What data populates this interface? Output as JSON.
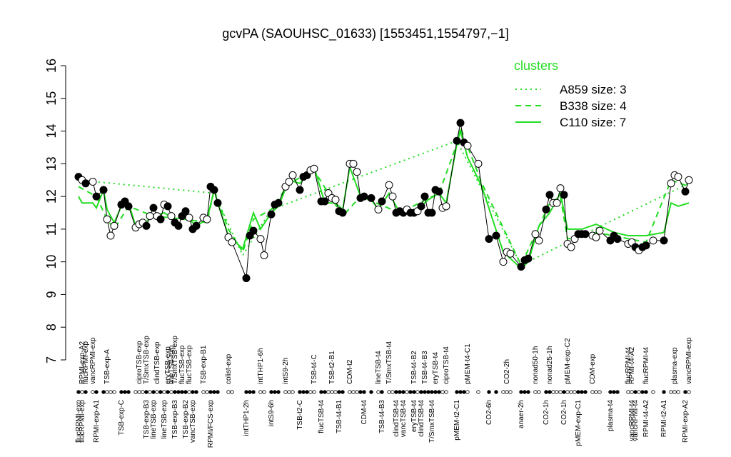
{
  "chart_data": {
    "type": "line",
    "title": "gcvPA (SAOUHSC_01633) [1553451,1554797,−1]",
    "ylim": [
      7,
      16
    ],
    "yticks": [
      7,
      8,
      9,
      10,
      11,
      12,
      13,
      14,
      15,
      16
    ],
    "points": {
      "x": [
        0,
        1,
        2,
        4,
        5,
        7,
        8,
        9,
        10,
        12,
        13,
        14,
        16,
        17,
        18,
        19,
        20,
        21,
        22,
        23,
        24,
        25,
        26,
        27,
        28,
        29,
        30,
        31,
        32,
        33,
        35,
        36,
        37,
        38,
        39,
        42,
        43,
        47,
        48,
        49,
        51,
        52,
        54,
        55,
        56,
        58,
        59,
        60,
        62,
        63,
        64,
        65,
        66,
        68,
        69,
        70,
        71,
        72,
        73,
        74,
        76,
        77,
        78,
        79,
        80,
        82,
        84,
        85,
        87,
        88,
        89,
        90,
        91,
        92,
        93,
        94,
        95,
        96,
        97,
        98,
        99,
        100,
        101,
        102,
        103,
        106,
        107,
        108,
        109,
        112,
        115,
        117,
        119,
        120,
        121,
        124,
        125,
        126,
        128,
        129,
        131,
        132,
        133,
        134,
        135,
        136,
        137,
        138,
        139,
        140,
        141,
        142,
        144,
        145,
        146,
        149,
        150,
        151,
        154,
        155,
        156,
        157,
        158,
        159,
        161,
        164,
        166,
        167,
        168,
        170,
        171
      ],
      "y": [
        12.6,
        12.5,
        12.4,
        12.45,
        12.0,
        12.2,
        11.3,
        10.8,
        11.1,
        11.75,
        11.85,
        11.7,
        11.05,
        11.15,
        11.2,
        11.1,
        11.4,
        11.65,
        11.4,
        11.3,
        11.75,
        11.7,
        11.4,
        11.2,
        11.1,
        11.4,
        11.55,
        11.35,
        11.0,
        11.1,
        11.35,
        11.3,
        12.3,
        12.2,
        11.8,
        10.75,
        10.6,
        9.5,
        10.8,
        10.95,
        10.7,
        10.2,
        11.45,
        11.75,
        11.8,
        12.3,
        12.45,
        12.65,
        12.2,
        12.6,
        12.65,
        12.8,
        12.85,
        11.85,
        11.85,
        12.1,
        11.95,
        11.9,
        11.55,
        11.5,
        13.0,
        13.0,
        12.75,
        11.95,
        12.0,
        11.95,
        11.6,
        11.85,
        12.35,
        12.0,
        11.5,
        11.55,
        11.5,
        11.6,
        11.5,
        11.5,
        11.55,
        11.7,
        12.0,
        11.5,
        11.5,
        12.2,
        12.15,
        11.65,
        11.7,
        13.7,
        14.25,
        13.65,
        13.55,
        13.0,
        10.7,
        10.8,
        10.0,
        10.3,
        10.25,
        9.85,
        10.05,
        10.1,
        10.85,
        10.65,
        11.6,
        12.05,
        11.8,
        11.8,
        12.25,
        12.05,
        10.55,
        10.45,
        10.7,
        10.85,
        10.85,
        10.85,
        10.8,
        10.75,
        10.95,
        10.65,
        10.8,
        10.7,
        10.55,
        10.6,
        10.45,
        10.35,
        10.45,
        10.5,
        10.65,
        10.65,
        12.4,
        12.65,
        12.6,
        12.15,
        12.5
      ],
      "filled": [
        true,
        false,
        true,
        false,
        true,
        true,
        false,
        false,
        false,
        true,
        true,
        true,
        false,
        false,
        false,
        true,
        false,
        true,
        false,
        true,
        false,
        true,
        false,
        true,
        true,
        true,
        true,
        false,
        true,
        true,
        false,
        false,
        true,
        true,
        true,
        false,
        false,
        true,
        true,
        true,
        false,
        false,
        true,
        true,
        true,
        false,
        false,
        false,
        true,
        true,
        true,
        false,
        false,
        true,
        true,
        false,
        false,
        false,
        true,
        true,
        false,
        false,
        false,
        true,
        true,
        true,
        false,
        true,
        false,
        false,
        true,
        true,
        true,
        false,
        true,
        true,
        false,
        true,
        true,
        true,
        true,
        true,
        true,
        false,
        false,
        true,
        true,
        true,
        false,
        false,
        true,
        true,
        false,
        false,
        false,
        true,
        true,
        true,
        false,
        false,
        true,
        true,
        false,
        false,
        false,
        true,
        false,
        false,
        false,
        true,
        true,
        true,
        false,
        false,
        false,
        true,
        true,
        true,
        false,
        false,
        true,
        false,
        true,
        true,
        false,
        true,
        false,
        false,
        false,
        true,
        false
      ]
    },
    "legend_title": "clusters",
    "series": [
      {
        "name": "A859 size: 3",
        "color": "#22dd22",
        "style": "dotted",
        "x": [
          0,
          38,
          46,
          54,
          106,
          124,
          137,
          171
        ],
        "values": [
          12.5,
          12.1,
          10.2,
          11.6,
          13.7,
          9.9,
          10.6,
          12.4
        ]
      },
      {
        "name": "B338 size: 4",
        "color": "#22dd22",
        "style": "dashed",
        "x": [
          0,
          5,
          8,
          10,
          14,
          21,
          30,
          36,
          38,
          42,
          46,
          49,
          54,
          59,
          66,
          74,
          79,
          90,
          101,
          106,
          107,
          113,
          124,
          132,
          135,
          137,
          145,
          159,
          166,
          171
        ],
        "values": [
          12.3,
          12.0,
          11.3,
          11.0,
          11.7,
          11.4,
          11.3,
          11.2,
          12.2,
          11.0,
          10.3,
          11.3,
          11.6,
          12.4,
          12.8,
          11.4,
          12.0,
          11.5,
          12.1,
          13.6,
          14.1,
          12.4,
          9.9,
          11.8,
          12.0,
          10.7,
          10.9,
          10.6,
          12.5,
          12.3
        ]
      },
      {
        "name": "C110 size: 7",
        "color": "#22dd22",
        "style": "solid",
        "x": [
          0,
          1,
          4,
          5,
          7,
          8,
          10,
          12,
          14,
          16,
          18,
          21,
          24,
          27,
          30,
          33,
          36,
          38,
          39,
          42,
          46,
          49,
          51,
          54,
          56,
          59,
          62,
          66,
          69,
          72,
          74,
          76,
          79,
          82,
          84,
          87,
          90,
          94,
          98,
          101,
          103,
          106,
          107,
          109,
          113,
          116,
          119,
          124,
          126,
          129,
          132,
          135,
          137,
          141,
          145,
          150,
          154,
          159,
          164,
          166,
          168,
          171
        ],
        "values": [
          12.0,
          11.8,
          11.8,
          11.65,
          12.2,
          11.6,
          11.2,
          11.7,
          11.8,
          11.1,
          11.15,
          11.4,
          11.5,
          11.3,
          11.4,
          11.1,
          11.3,
          12.2,
          11.8,
          10.8,
          10.4,
          11.5,
          11.0,
          11.5,
          11.7,
          12.5,
          12.4,
          12.9,
          11.8,
          11.8,
          11.6,
          12.9,
          12.0,
          11.9,
          11.6,
          12.1,
          11.5,
          11.5,
          11.9,
          12.1,
          11.8,
          13.6,
          14.0,
          13.2,
          12.3,
          11.3,
          10.3,
          9.8,
          10.0,
          11.1,
          11.5,
          12.1,
          11.0,
          11.0,
          11.15,
          10.9,
          10.8,
          10.8,
          10.9,
          11.8,
          11.7,
          11.8
        ]
      }
    ],
    "top_labels": {
      "x": [
        1,
        2,
        4,
        8,
        17,
        19,
        22,
        25,
        26,
        27,
        29,
        31,
        35,
        42,
        51,
        58,
        66,
        71,
        76,
        84,
        87,
        94,
        97,
        100,
        103,
        109,
        120,
        128,
        132,
        137,
        144,
        154,
        155,
        159,
        167,
        171
      ],
      "labels": [
        "RPMI-exp-A2",
        "flucRPMI-exp",
        "vancRPMI-exp",
        "TSB-exp-A",
        "ciproTSB-exp",
        "T/SmxTSB-exp",
        "clindTSB-exp",
        "eryTSB-exp",
        "lineTSB-exp",
        "T/SmxTSB-exp",
        "flucTSB-exp",
        "flucTSB-exp",
        "TSB-exp-B1",
        "colist-exp",
        "intTHP1-6h",
        "intS9-2h",
        "TSB-t4-C",
        "TSB-t2-B1",
        "CDM-t2",
        "lineTSB-t4",
        "T/SmxTSB-t4",
        "TSB-t4-B2",
        "TSB-t4-B3",
        "eryTSB-t4",
        "ciproTSB-t4",
        "pMEM-t4-C1",
        "CO2-2h",
        "nonad50-1h",
        "nonad25-1h",
        "pMEM-exp-C2",
        "CDM-exp",
        "flucRPMI-t4",
        "RPMI-t4-A2",
        "flucRPMI-t4",
        "plasma-exp",
        "vancRPMI-exp"
      ]
    },
    "bottom_labels": {
      "x": [
        0,
        1,
        5,
        12,
        19,
        21,
        24,
        27,
        30,
        32,
        37,
        47,
        54,
        62,
        68,
        73,
        80,
        85,
        89,
        91,
        94,
        96,
        99,
        106,
        115,
        124,
        131,
        136,
        140,
        149,
        155,
        156,
        159,
        164,
        170
      ],
      "labels": [
        "flucRPMI-exp",
        "flucRPMI-exp",
        "RPMI-exp-A1",
        "TSB-exp-C",
        "TSB-exp-B3",
        "lineTSB-exp",
        "lineTSB-exp",
        "TSB-exp-B3",
        "TSB-exp-B2",
        "vancTSB-exp",
        "RPMI/FCS-exp",
        "intTHP1-2h",
        "intS9-6h",
        "TSB-t2-C",
        "flucTSB-t4",
        "TSB-t4-B1",
        "CDM-t4",
        "TSB-t4-B3",
        "clindTSB-t4",
        "vancTSB-t4",
        "eryTSB-t4",
        "clindTSB-t4",
        "T/SmxTSB-t4",
        "pMEM-t2-C1",
        "CO2-6h",
        "anaer-2h",
        "CO2-1h",
        "CO2-1h",
        "pMEM-exp-C1",
        "plasma-t4",
        "vancRPMI-t4",
        "vancRPMI-t4",
        "RPMI-t4-A2",
        "RPMI-t2-A1",
        "RPMI-exp-A2"
      ]
    }
  }
}
